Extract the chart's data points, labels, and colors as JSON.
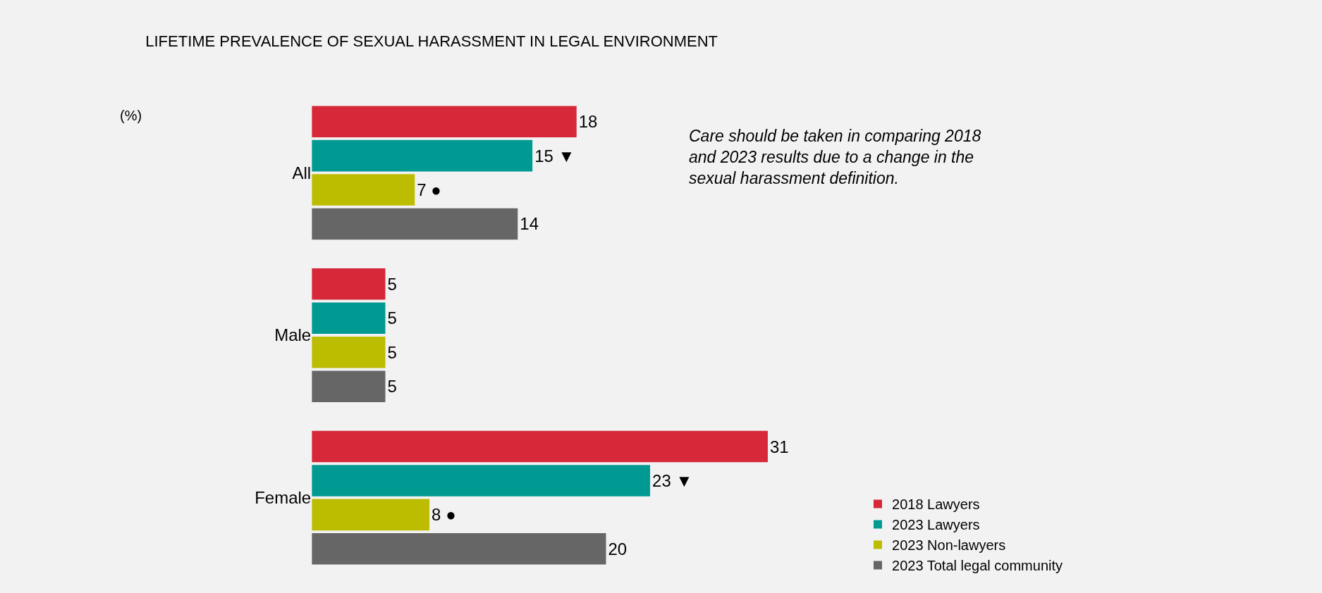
{
  "chart_data": {
    "type": "bar",
    "orientation": "horizontal",
    "title": "LIFETIME PREVALENCE OF SEXUAL HARASSMENT IN LEGAL ENVIRONMENT",
    "categories": [
      "All",
      "Male",
      "Female"
    ],
    "series": [
      {
        "name": "2018 Lawyers",
        "color": "#d62839",
        "values": [
          18,
          5,
          31
        ]
      },
      {
        "name": "2023 Lawyers",
        "color": "#009a93",
        "values": [
          15,
          5,
          23
        ],
        "value_labels": [
          "15 ▼",
          "5",
          "23 ▼"
        ]
      },
      {
        "name": "2023 Non-lawyers",
        "color": "#bcbc00",
        "values": [
          7,
          5,
          8
        ],
        "value_labels": [
          "7 ●",
          "5",
          "8 ●"
        ]
      },
      {
        "name": "2023 Total legal community",
        "color": "#666666",
        "values": [
          14,
          5,
          20
        ]
      }
    ],
    "data_labels": true,
    "legend": "bottom right",
    "annotations": [
      "(%)",
      "Care should be taken in comparing 2018 and 2023 results due to a change in the sexual harassment definition."
    ]
  }
}
